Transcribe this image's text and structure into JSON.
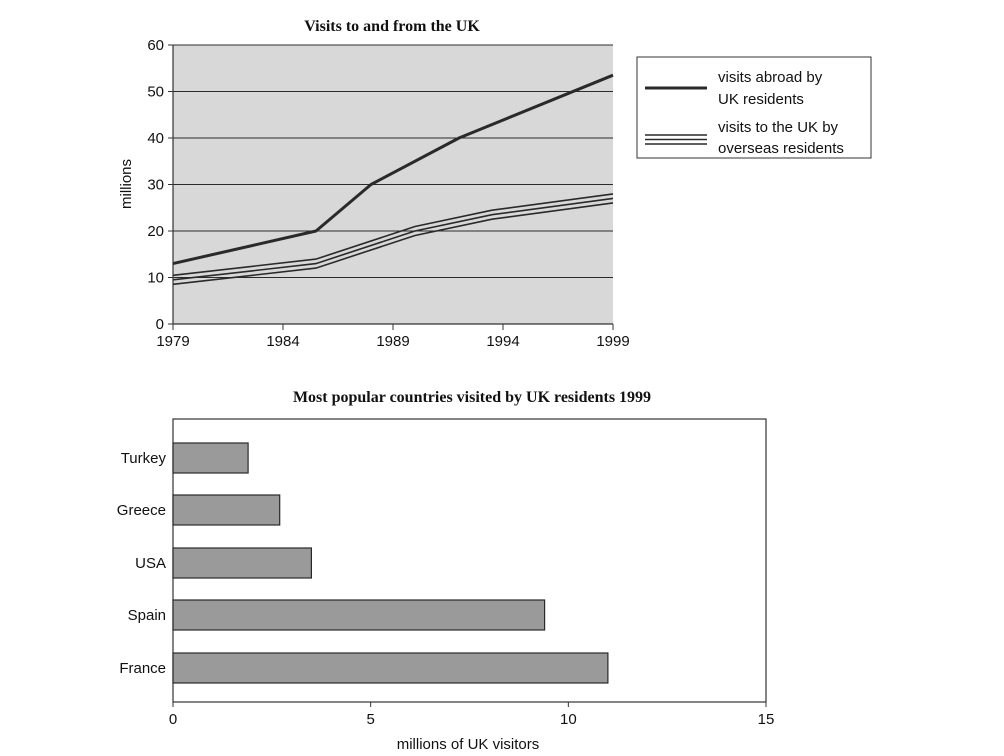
{
  "chart_data": [
    {
      "type": "line",
      "title": "Visits to and from the UK",
      "xlabel": "",
      "ylabel": "millions",
      "x": [
        1979,
        1985.5,
        1988,
        1992,
        1999
      ],
      "xticks": [
        "1979",
        "1984",
        "1989",
        "1994",
        "1999"
      ],
      "xlim": [
        1979,
        1999
      ],
      "ylim": [
        0,
        60
      ],
      "yticks": [
        "0",
        "10",
        "20",
        "30",
        "40",
        "50",
        "60"
      ],
      "grid": true,
      "background": "#d8d8d8",
      "legend_position": "right",
      "series": [
        {
          "name": "visits abroad by UK residents",
          "name_lines": [
            "visits abroad by",
            "UK residents"
          ],
          "style": "single-line",
          "color": "#2a2a2a",
          "x": [
            1979,
            1985.5,
            1988,
            1992,
            1999
          ],
          "values": [
            13,
            20,
            30,
            40,
            53.5
          ]
        },
        {
          "name": "visits to the UK by overseas residents",
          "name_lines": [
            "visits to the UK by",
            "overseas residents"
          ],
          "style": "triple-line",
          "color": "#2a2a2a",
          "x": [
            1979,
            1985.5,
            1990,
            1993.5,
            1999
          ],
          "values": [
            9.5,
            13,
            20,
            23.5,
            27
          ]
        }
      ]
    },
    {
      "type": "bar",
      "orientation": "horizontal",
      "title": "Most popular countries visited by UK residents 1999",
      "xlabel": "millions of UK visitors",
      "ylabel": "",
      "categories": [
        "Turkey",
        "Greece",
        "USA",
        "Spain",
        "France"
      ],
      "values": [
        1.9,
        2.7,
        3.5,
        9.4,
        11
      ],
      "xlim": [
        0,
        15
      ],
      "xticks": [
        "0",
        "5",
        "10",
        "15"
      ],
      "bar_color": "#9a9a9a"
    }
  ]
}
